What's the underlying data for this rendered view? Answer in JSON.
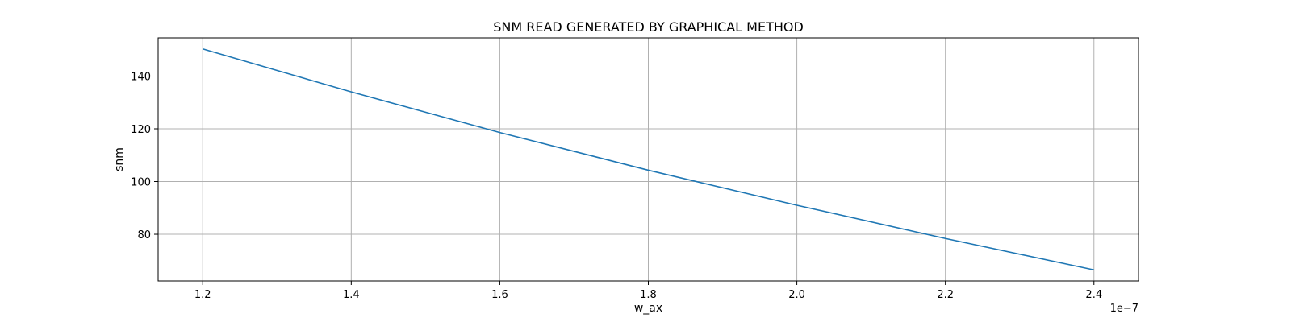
{
  "chart_data": {
    "type": "line",
    "title": "SNM READ GENERATED BY GRAPHICAL METHOD",
    "xlabel": "w_ax",
    "ylabel": "snm",
    "x_offset_label": "1e−7",
    "x_scale": 1e-07,
    "xlim": [
      1.14,
      2.46
    ],
    "ylim": [
      62.3,
      154.5
    ],
    "xticks": [
      1.2,
      1.4,
      1.6,
      1.8,
      2.0,
      2.2,
      2.4
    ],
    "xtick_labels": [
      "1.2",
      "1.4",
      "1.6",
      "1.8",
      "2.0",
      "2.2",
      "2.4"
    ],
    "yticks": [
      80,
      100,
      120,
      140
    ],
    "ytick_labels": [
      "80",
      "100",
      "120",
      "140"
    ],
    "grid": true,
    "series": [
      {
        "color": "#1f77b4",
        "x": [
          1.2,
          1.4,
          1.6,
          1.8,
          2.0,
          2.2,
          2.4
        ],
        "y": [
          150.3,
          134.0,
          118.6,
          104.3,
          91.0,
          78.4,
          66.5
        ]
      }
    ]
  }
}
